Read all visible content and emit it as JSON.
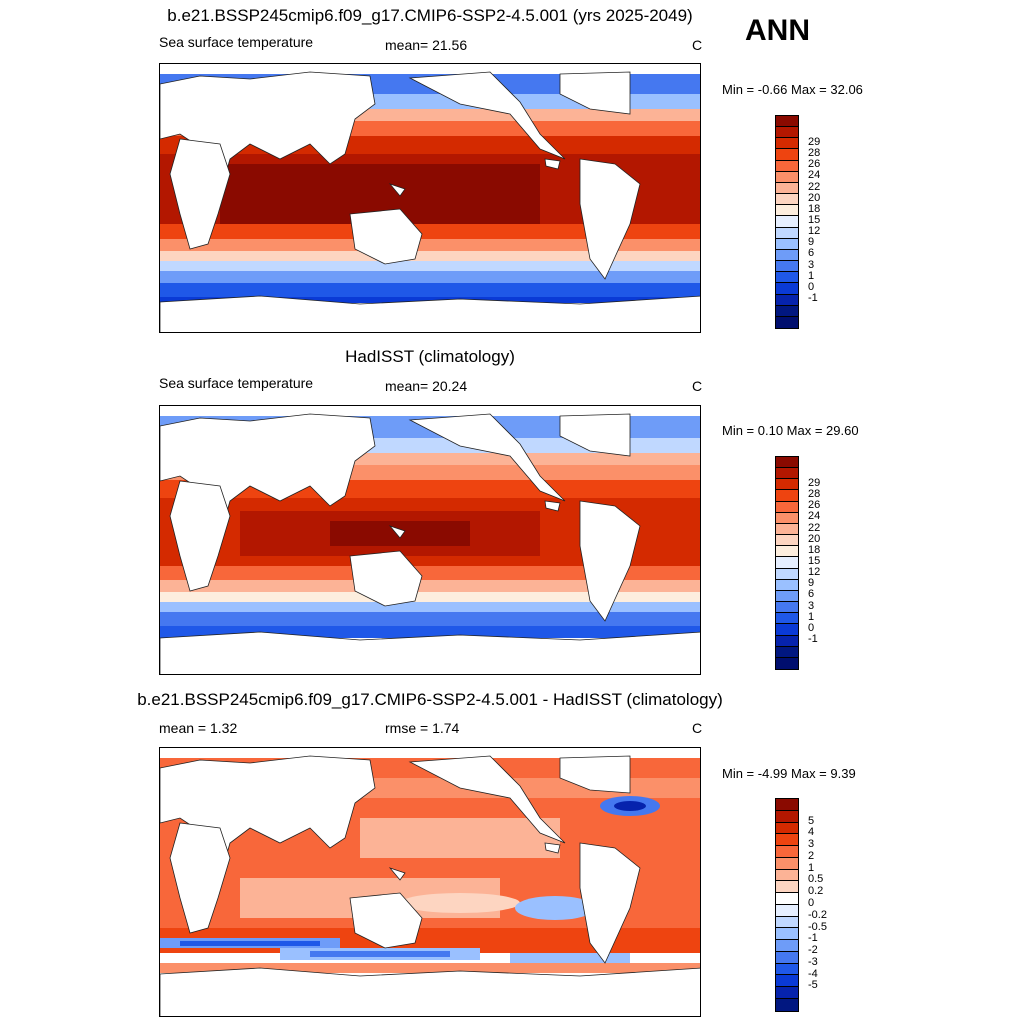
{
  "season": "ANN",
  "panels": [
    {
      "title": "b.e21.BSSP245cmip6.f09_g17.CMIP6-SSP2-4.5.001 (yrs 2025-2049)",
      "variable": "Sea surface temperature",
      "stat1": "mean=  21.56",
      "units": "C",
      "minmax": "Min =  -0.66 Max =  32.06",
      "colorbar": {
        "colors": [
          "#8a0a00",
          "#b31700",
          "#d42a00",
          "#ee4410",
          "#f8673a",
          "#fb9069",
          "#fcb396",
          "#fdd5c1",
          "#fdeede",
          "#e6efff",
          "#c0d8ff",
          "#9ac0ff",
          "#6e9cf8",
          "#4578f0",
          "#1f58e8",
          "#0a3ad6",
          "#0623ad",
          "#011780",
          "#000e6e"
        ],
        "labels": [
          "29",
          "28",
          "26",
          "24",
          "22",
          "20",
          "18",
          "15",
          "12",
          "9",
          "6",
          "3",
          "1",
          "0",
          "-1"
        ]
      }
    },
    {
      "title": "HadISST (climatology)",
      "variable": "Sea surface temperature",
      "stat1": "mean=  20.24",
      "units": "C",
      "minmax": "Min =   0.10 Max =  29.60",
      "colorbar": {
        "colors": [
          "#8a0a00",
          "#b31700",
          "#d42a00",
          "#ee4410",
          "#f8673a",
          "#fb9069",
          "#fcb396",
          "#fdd5c1",
          "#fdeede",
          "#e6efff",
          "#c0d8ff",
          "#9ac0ff",
          "#6e9cf8",
          "#4578f0",
          "#1f58e8",
          "#0a3ad6",
          "#0623ad",
          "#011780",
          "#000e6e"
        ],
        "labels": [
          "29",
          "28",
          "26",
          "24",
          "22",
          "20",
          "18",
          "15",
          "12",
          "9",
          "6",
          "3",
          "1",
          "0",
          "-1"
        ]
      }
    },
    {
      "title": "b.e21.BSSP245cmip6.f09_g17.CMIP6-SSP2-4.5.001 - HadISST (climatology)",
      "variable": "mean =   1.32",
      "stat1": "rmse =   1.74",
      "units": "C",
      "minmax": "Min =  -4.99 Max =   9.39",
      "colorbar": {
        "colors": [
          "#8a0a00",
          "#b31700",
          "#d42a00",
          "#ee4410",
          "#f8673a",
          "#fb9069",
          "#fcb396",
          "#fdd5c1",
          "#ffffff",
          "#e6efff",
          "#c0d8ff",
          "#9ac0ff",
          "#6e9cf8",
          "#4578f0",
          "#1f58e8",
          "#0a3ad6",
          "#0623ad",
          "#011780"
        ],
        "labels": [
          "5",
          "4",
          "3",
          "2",
          "1",
          "0.5",
          "0.2",
          "0",
          "-0.2",
          "-0.5",
          "-1",
          "-2",
          "-3",
          "-4",
          "-5"
        ]
      }
    }
  ]
}
